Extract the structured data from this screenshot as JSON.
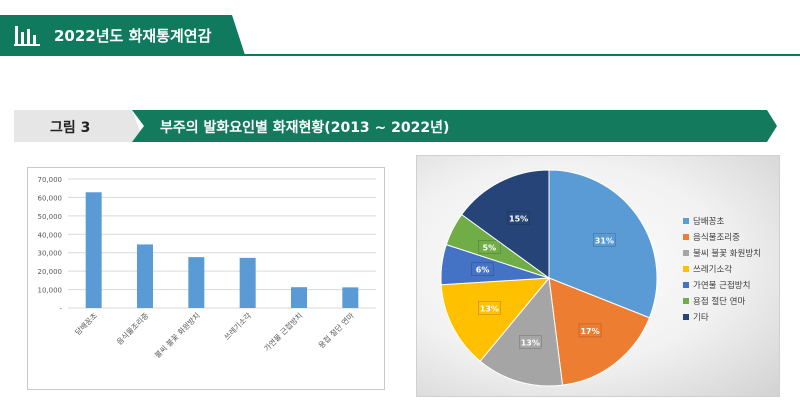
{
  "header": {
    "title": "2022년도 화재통계연감",
    "icon": "bar-chart-icon"
  },
  "figure": {
    "label": "그림 3",
    "title": "부주의 발화요인별 화재현황(2013 ~ 2022년)"
  },
  "colors": {
    "brand": "#0f7a5e",
    "bar": "#5b9bd5"
  },
  "chart_data": [
    {
      "type": "bar",
      "categories": [
        "담배꽁초",
        "음식물조리중",
        "불씨 불꽃 화원방치",
        "쓰레기소각",
        "가연물 근접방치",
        "용접 절단 연마"
      ],
      "values": [
        62800,
        34500,
        27600,
        27200,
        11300,
        11200
      ],
      "ylim": [
        0,
        70000
      ],
      "yticks": [
        "-",
        "10,000",
        "20,000",
        "30,000",
        "40,000",
        "50,000",
        "60,000",
        "70,000"
      ],
      "grid": true
    },
    {
      "type": "pie",
      "categories": [
        "담배꽁초",
        "음식물조리중",
        "불씨 불꽃 화원방치",
        "쓰레기소각",
        "가연물 근접방치",
        "용접 절단 연마",
        "기타"
      ],
      "values": [
        31,
        17,
        13,
        13,
        6,
        5,
        15
      ],
      "labels": [
        "31%",
        "17%",
        "13%",
        "13%",
        "6%",
        "5%",
        "15%"
      ],
      "colors": [
        "#5b9bd5",
        "#ed7d31",
        "#a5a5a5",
        "#ffc000",
        "#4472c4",
        "#70ad47",
        "#264478"
      ],
      "legend": "right"
    }
  ]
}
